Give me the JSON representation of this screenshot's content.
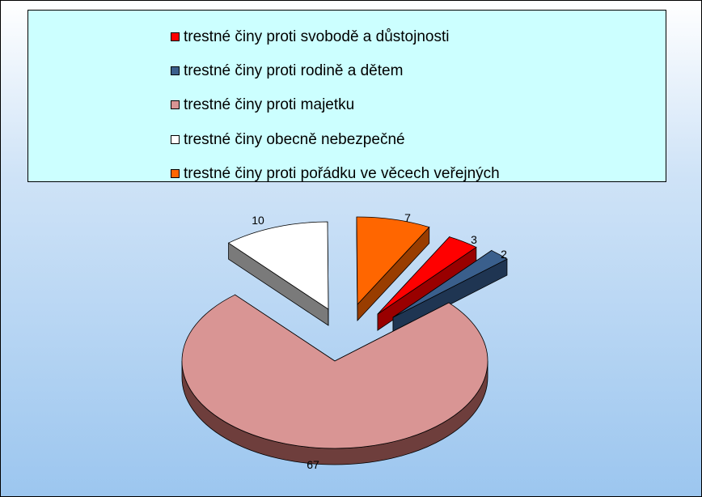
{
  "chart_data": {
    "type": "pie",
    "style": "3d-exploded",
    "legend_position": "top",
    "categories": [
      "trestné činy proti svobodě a důstojnosti",
      "trestné činy proti rodině a dětem",
      "trestné činy proti majetku",
      "trestné činy obecně nebezpečné",
      "trestné činy proti pořádku ve věcech veřejných"
    ],
    "values": [
      3,
      2,
      67,
      10,
      7
    ],
    "value_labels": [
      "3",
      "2",
      "67",
      "10",
      "7"
    ],
    "colors": [
      "#ff0000",
      "#3a5f8c",
      "#d99594",
      "#ffffff",
      "#ff6600"
    ],
    "side_colors": [
      "#990000",
      "#1f3552",
      "#6e3e3c",
      "#7a7a7a",
      "#993d00"
    ]
  }
}
